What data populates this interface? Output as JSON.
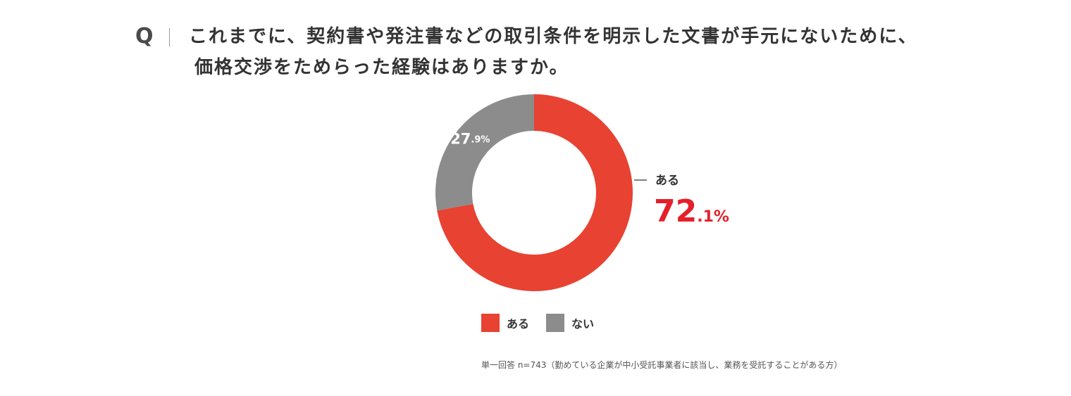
{
  "question": {
    "marker": "Q",
    "line1": "これまでに、契約書や発注書などの取引条件を明示した文書が手元にないために、",
    "line2": "価格交渉をためらった経験はありますか。"
  },
  "chart_data": {
    "type": "pie",
    "style": "donut",
    "start_angle_deg": 0,
    "direction": "clockwise",
    "slices": [
      {
        "label": "ある",
        "value": 72.1,
        "display_int": "72",
        "display_dec": ".1%",
        "color": "#e84232"
      },
      {
        "label": "ない",
        "value": 27.9,
        "display_int": "27",
        "display_dec": ".9%",
        "color": "#8c8c8c"
      }
    ],
    "legend": {
      "position": "bottom",
      "items": [
        {
          "label": "ある",
          "color": "#e84232"
        },
        {
          "label": "ない",
          "color": "#8c8c8c"
        }
      ]
    },
    "callout": {
      "label": "ある",
      "value_int": "72",
      "value_dec": ".1%",
      "color": "#e5202a"
    }
  },
  "footnote": "単一回答 n=743（勤めている企業が中小受託事業者に該当し、業務を受託することがある方）"
}
